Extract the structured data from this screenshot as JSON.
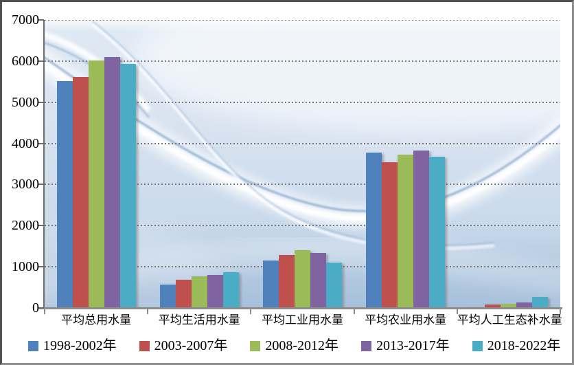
{
  "chart_data": {
    "type": "bar",
    "title": "",
    "categories": [
      "平均总用水量",
      "平均生活用水量",
      "平均工业用水量",
      "平均农业用水量",
      "平均人工生态补水量"
    ],
    "series": [
      {
        "name": "1998-2002年",
        "color": "#4F81BD",
        "values": [
          5520,
          570,
          1150,
          3780,
          10
        ]
      },
      {
        "name": "2003-2007年",
        "color": "#C0504D",
        "values": [
          5610,
          680,
          1280,
          3550,
          80
        ]
      },
      {
        "name": "2008-2012年",
        "color": "#9BBB59",
        "values": [
          6020,
          765,
          1400,
          3730,
          100
        ]
      },
      {
        "name": "2013-2017年",
        "color": "#8064A2",
        "values": [
          6100,
          800,
          1330,
          3830,
          130
        ]
      },
      {
        "name": "2018-2022年",
        "color": "#4BACC6",
        "values": [
          5930,
          870,
          1110,
          3670,
          270
        ]
      }
    ],
    "xlabel": "",
    "ylabel": "",
    "ylim": [
      0,
      7000
    ],
    "yticks": [
      0,
      1000,
      2000,
      3000,
      4000,
      5000,
      6000,
      7000
    ],
    "grid": "horizontal-dotted",
    "legend_position": "bottom",
    "style": {
      "axis_color": "#6d6d6d",
      "baseline_color": "#8c8c8c",
      "gridline_color": "#787878",
      "plot_background": "blue-waves-picture"
    }
  }
}
